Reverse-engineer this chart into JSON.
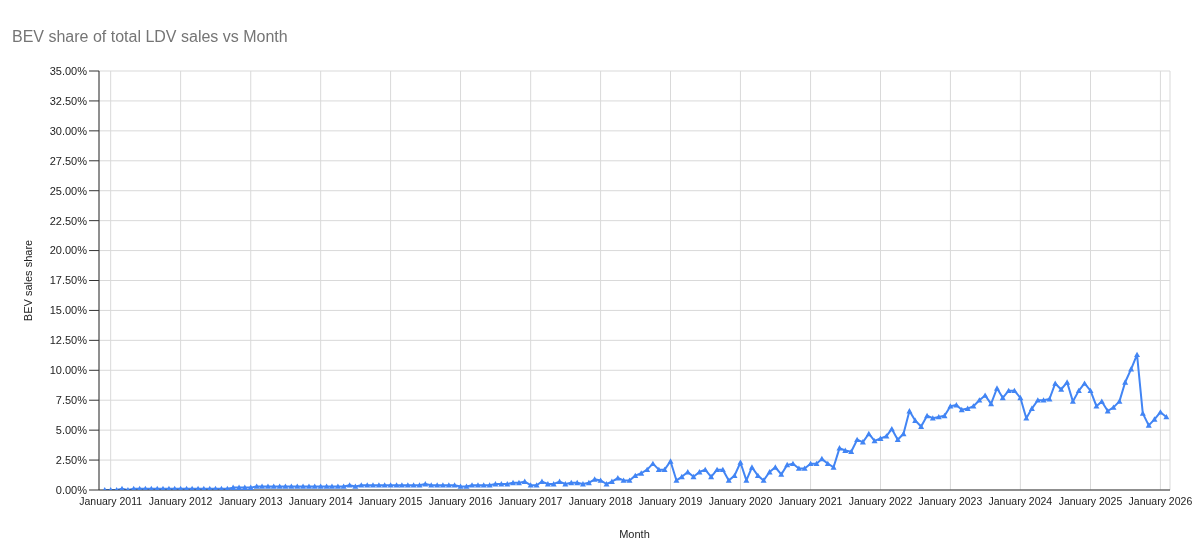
{
  "chart_data": {
    "type": "line",
    "title": "BEV share of total LDV sales vs Month",
    "xlabel": "Month",
    "ylabel": "BEV sales share",
    "x": [
      "2010-12",
      "2011-01",
      "2011-02",
      "2011-03",
      "2011-04",
      "2011-05",
      "2011-06",
      "2011-07",
      "2011-08",
      "2011-09",
      "2011-10",
      "2011-11",
      "2011-12",
      "2012-01",
      "2012-02",
      "2012-03",
      "2012-04",
      "2012-05",
      "2012-06",
      "2012-07",
      "2012-08",
      "2012-09",
      "2012-10",
      "2012-11",
      "2012-12",
      "2013-01",
      "2013-02",
      "2013-03",
      "2013-04",
      "2013-05",
      "2013-06",
      "2013-07",
      "2013-08",
      "2013-09",
      "2013-10",
      "2013-11",
      "2013-12",
      "2014-01",
      "2014-02",
      "2014-03",
      "2014-04",
      "2014-05",
      "2014-06",
      "2014-07",
      "2014-08",
      "2014-09",
      "2014-10",
      "2014-11",
      "2014-12",
      "2015-01",
      "2015-02",
      "2015-03",
      "2015-04",
      "2015-05",
      "2015-06",
      "2015-07",
      "2015-08",
      "2015-09",
      "2015-10",
      "2015-11",
      "2015-12",
      "2016-01",
      "2016-02",
      "2016-03",
      "2016-04",
      "2016-05",
      "2016-06",
      "2016-07",
      "2016-08",
      "2016-09",
      "2016-10",
      "2016-11",
      "2016-12",
      "2017-01",
      "2017-02",
      "2017-03",
      "2017-04",
      "2017-05",
      "2017-06",
      "2017-07",
      "2017-08",
      "2017-09",
      "2017-10",
      "2017-11",
      "2017-12",
      "2018-01",
      "2018-02",
      "2018-03",
      "2018-04",
      "2018-05",
      "2018-06",
      "2018-07",
      "2018-08",
      "2018-09",
      "2018-10",
      "2018-11",
      "2018-12",
      "2019-01",
      "2019-02",
      "2019-03",
      "2019-04",
      "2019-05",
      "2019-06",
      "2019-07",
      "2019-08",
      "2019-09",
      "2019-10",
      "2019-11",
      "2019-12",
      "2020-01",
      "2020-02",
      "2020-03",
      "2020-04",
      "2020-05",
      "2020-06",
      "2020-07",
      "2020-08",
      "2020-09",
      "2020-10",
      "2020-11",
      "2020-12",
      "2021-01",
      "2021-02",
      "2021-03",
      "2021-04",
      "2021-05",
      "2021-06",
      "2021-07",
      "2021-08",
      "2021-09",
      "2021-10",
      "2021-11",
      "2021-12",
      "2022-01",
      "2022-02",
      "2022-03",
      "2022-04",
      "2022-05",
      "2022-06",
      "2022-07",
      "2022-08",
      "2022-09",
      "2022-10",
      "2022-11",
      "2022-12",
      "2023-01",
      "2023-02",
      "2023-03",
      "2023-04",
      "2023-05",
      "2023-06",
      "2023-07",
      "2023-08",
      "2023-09",
      "2023-10",
      "2023-11",
      "2023-12",
      "2024-01",
      "2024-02",
      "2024-03",
      "2024-04",
      "2024-05",
      "2024-06",
      "2024-07",
      "2024-08",
      "2024-09",
      "2024-10",
      "2024-11",
      "2024-12",
      "2025-01",
      "2025-02",
      "2025-03",
      "2025-04",
      "2025-05",
      "2025-06",
      "2025-07",
      "2025-08",
      "2025-09",
      "2025-10",
      "2025-11",
      "2025-12",
      "2026-01",
      "2026-02"
    ],
    "series": [
      {
        "color": "#4285f4",
        "values": [
          0,
          0,
          0,
          0.1,
          0,
          0.1,
          0.1,
          0.1,
          0.1,
          0.1,
          0.1,
          0.1,
          0.1,
          0.1,
          0.1,
          0.1,
          0.1,
          0.1,
          0.1,
          0.1,
          0.1,
          0.1,
          0.2,
          0.2,
          0.2,
          0.2,
          0.3,
          0.3,
          0.3,
          0.3,
          0.3,
          0.3,
          0.3,
          0.3,
          0.3,
          0.3,
          0.3,
          0.3,
          0.3,
          0.3,
          0.3,
          0.3,
          0.4,
          0.3,
          0.4,
          0.4,
          0.4,
          0.4,
          0.4,
          0.4,
          0.4,
          0.4,
          0.4,
          0.4,
          0.4,
          0.5,
          0.4,
          0.4,
          0.4,
          0.4,
          0.4,
          0.3,
          0.3,
          0.4,
          0.4,
          0.4,
          0.4,
          0.5,
          0.5,
          0.5,
          0.6,
          0.6,
          0.7,
          0.4,
          0.4,
          0.7,
          0.5,
          0.5,
          0.7,
          0.5,
          0.6,
          0.6,
          0.5,
          0.6,
          0.9,
          0.8,
          0.5,
          0.7,
          1.0,
          0.8,
          0.8,
          1.2,
          1.4,
          1.7,
          2.2,
          1.7,
          1.7,
          2.4,
          0.8,
          1.1,
          1.5,
          1.1,
          1.5,
          1.7,
          1.1,
          1.7,
          1.7,
          0.8,
          1.2,
          2.3,
          0.8,
          1.9,
          1.2,
          0.8,
          1.5,
          1.9,
          1.3,
          2.1,
          2.2,
          1.8,
          1.8,
          2.2,
          2.2,
          2.6,
          2.2,
          1.9,
          3.5,
          3.3,
          3.2,
          4.2,
          4.0,
          4.7,
          4.1,
          4.3,
          4.5,
          5.1,
          4.2,
          4.7,
          6.6,
          5.8,
          5.3,
          6.2,
          6.0,
          6.1,
          6.2,
          7.0,
          7.1,
          6.7,
          6.8,
          7.0,
          7.5,
          7.9,
          7.2,
          8.5,
          7.7,
          8.3,
          8.3,
          7.7,
          6.0,
          6.8,
          7.5,
          7.5,
          7.6,
          8.9,
          8.4,
          9.0,
          7.4,
          8.3,
          8.9,
          8.3,
          7.0,
          7.4,
          6.6,
          6.9,
          7.4,
          9.0,
          10.1,
          11.3,
          6.4,
          5.4,
          5.9,
          6.5,
          6.1
        ]
      }
    ],
    "xlim": [
      "2010-11",
      "2026-02-20"
    ],
    "xticks": [
      {
        "value": "2011-01",
        "label": "January 2011"
      },
      {
        "value": "2012-01",
        "label": "January 2012"
      },
      {
        "value": "2013-01",
        "label": "January 2013"
      },
      {
        "value": "2014-01",
        "label": "January 2014"
      },
      {
        "value": "2015-01",
        "label": "January 2015"
      },
      {
        "value": "2016-01",
        "label": "January 2016"
      },
      {
        "value": "2017-01",
        "label": "January 2017"
      },
      {
        "value": "2018-01",
        "label": "January 2018"
      },
      {
        "value": "2019-01",
        "label": "January 2019"
      },
      {
        "value": "2020-01",
        "label": "January 2020"
      },
      {
        "value": "2021-01",
        "label": "January 2021"
      },
      {
        "value": "2022-01",
        "label": "January 2022"
      },
      {
        "value": "2023-01",
        "label": "January 2023"
      },
      {
        "value": "2024-01",
        "label": "January 2024"
      },
      {
        "value": "2025-01",
        "label": "January 2025"
      },
      {
        "value": "2026-01",
        "label": "January 2026"
      }
    ],
    "ylim": [
      0,
      35
    ],
    "yticks": [
      {
        "value": 0,
        "label": "0.00%"
      },
      {
        "value": 2.5,
        "label": "2.50%"
      },
      {
        "value": 5,
        "label": "5.00%"
      },
      {
        "value": 7.5,
        "label": "7.50%"
      },
      {
        "value": 10,
        "label": "10.00%"
      },
      {
        "value": 12.5,
        "label": "12.50%"
      },
      {
        "value": 15,
        "label": "15.00%"
      },
      {
        "value": 17.5,
        "label": "17.50%"
      },
      {
        "value": 20,
        "label": "20.00%"
      },
      {
        "value": 22.5,
        "label": "22.50%"
      },
      {
        "value": 25,
        "label": "25.00%"
      },
      {
        "value": 27.5,
        "label": "27.50%"
      },
      {
        "value": 30,
        "label": "30.00%"
      },
      {
        "value": 32.5,
        "label": "32.50%"
      },
      {
        "value": 35,
        "label": "35.00%"
      }
    ],
    "grid": true,
    "marker": "triangle",
    "line_style": "solid",
    "legend": false
  }
}
